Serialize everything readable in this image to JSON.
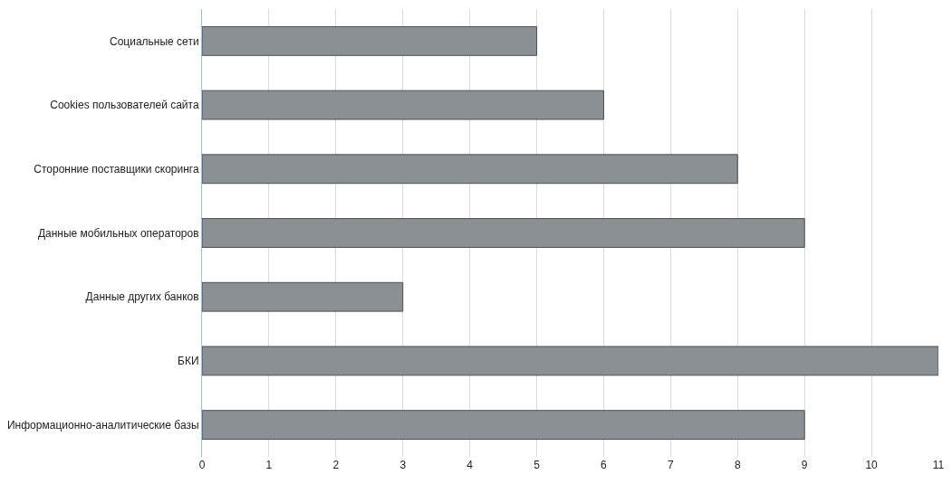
{
  "chart_data": {
    "type": "bar",
    "orientation": "horizontal",
    "categories": [
      "Социальные сети",
      "Cookies пользователей сайта",
      "Сторонние поставщики скоринга",
      "Данные мобильных операторов",
      "Данные других банков",
      "БКИ",
      "Информационно-аналитические базы"
    ],
    "values": [
      5,
      6,
      8,
      9,
      3,
      11,
      9
    ],
    "color": "#8b9095",
    "xlim": [
      0,
      11
    ],
    "xticks": [
      0,
      1,
      2,
      3,
      4,
      5,
      6,
      7,
      8,
      9,
      10,
      11
    ],
    "grid": "x",
    "legend": false
  }
}
